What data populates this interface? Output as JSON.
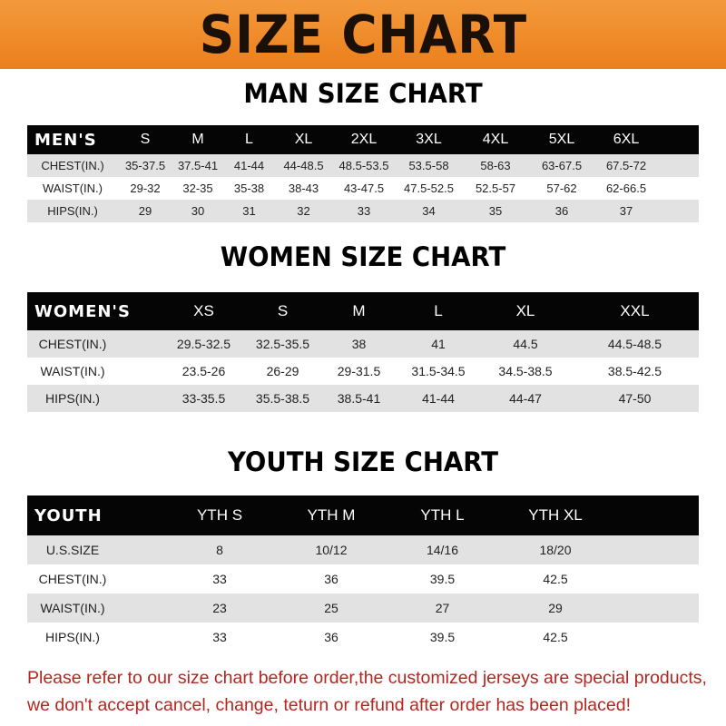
{
  "banner_title": "SIZE CHART",
  "men": {
    "title": "MAN SIZE CHART",
    "header": [
      "MEN'S",
      "S",
      "M",
      "L",
      "XL",
      "2XL",
      "3XL",
      "4XL",
      "5XL",
      "6XL"
    ],
    "rows": [
      [
        "CHEST(IN.)",
        "35-37.5",
        "37.5-41",
        "41-44",
        "44-48.5",
        "48.5-53.5",
        "53.5-58",
        "58-63",
        "63-67.5",
        "67.5-72"
      ],
      [
        "WAIST(IN.)",
        "29-32",
        "32-35",
        "35-38",
        "38-43",
        "43-47.5",
        "47.5-52.5",
        "52.5-57",
        "57-62",
        "62-66.5"
      ],
      [
        "HIPS(IN.)",
        "29",
        "30",
        "31",
        "32",
        "33",
        "34",
        "35",
        "36",
        "37"
      ]
    ]
  },
  "women": {
    "title": "WOMEN SIZE CHART",
    "header": [
      "WOMEN'S",
      "XS",
      "S",
      "M",
      "L",
      "XL",
      "XXL"
    ],
    "rows": [
      [
        "CHEST(IN.)",
        "29.5-32.5",
        "32.5-35.5",
        "38",
        "41",
        "44.5",
        "44.5-48.5"
      ],
      [
        "WAIST(IN.)",
        "23.5-26",
        "26-29",
        "29-31.5",
        "31.5-34.5",
        "34.5-38.5",
        "38.5-42.5"
      ],
      [
        "HIPS(IN.)",
        "33-35.5",
        "35.5-38.5",
        "38.5-41",
        "41-44",
        "44-47",
        "47-50"
      ]
    ]
  },
  "youth": {
    "title": "YOUTH SIZE CHART",
    "header": [
      "YOUTH",
      "YTH S",
      "YTH M",
      "YTH L",
      "YTH XL"
    ],
    "rows": [
      [
        "U.S.SIZE",
        "8",
        "10/12",
        "14/16",
        "18/20"
      ],
      [
        "CHEST(IN.)",
        "33",
        "36",
        "39.5",
        "42.5"
      ],
      [
        "WAIST(IN.)",
        "23",
        "25",
        "27",
        "29"
      ],
      [
        "HIPS(IN.)",
        "33",
        "36",
        "39.5",
        "42.5"
      ]
    ]
  },
  "note": {
    "line1": "Please refer to our size chart before order,the customized jerseys are special products,",
    "line2": "we don't accept cancel, change, teturn or refund after order has been placed!"
  },
  "colors": {
    "banner": "#ec7f1c",
    "header_row": "#050505",
    "stripe": "#e2e2e2",
    "note": "#b4261f"
  }
}
